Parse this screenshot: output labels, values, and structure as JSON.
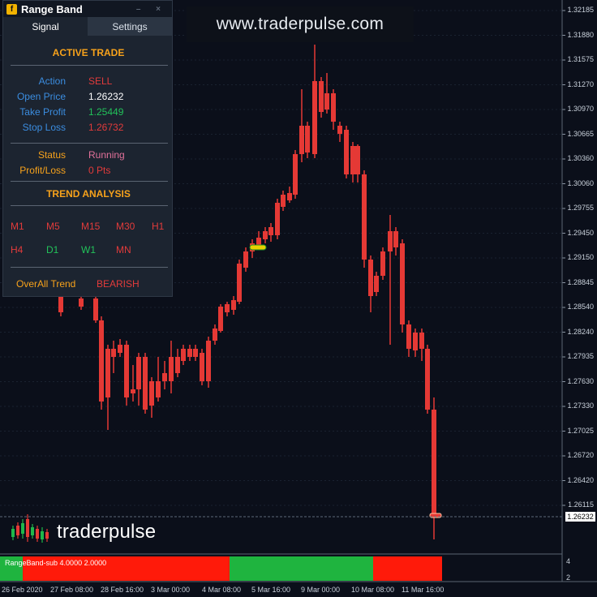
{
  "panel": {
    "logo_letter": "f",
    "title": "Range Band",
    "controls": "– ×",
    "tabs": [
      {
        "label": "Signal",
        "active": true
      },
      {
        "label": "Settings",
        "active": false
      }
    ],
    "active_trade_title": "ACTIVE TRADE",
    "action_label": "Action",
    "action_value": "SELL",
    "open_price_label": "Open Price",
    "open_price_value": "1.26232",
    "take_profit_label": "Take Profit",
    "take_profit_value": "1.25449",
    "stop_loss_label": "Stop Loss",
    "stop_loss_value": "1.26732",
    "status_label": "Status",
    "status_value": "Running",
    "profit_loss_label": "Profit/Loss",
    "profit_loss_value": "0 Pts",
    "trend_title": "TREND ANALYSIS",
    "timeframes_row1": [
      {
        "label": "M1",
        "color": "#e23b3b"
      },
      {
        "label": "M5",
        "color": "#e23b3b"
      },
      {
        "label": "M15",
        "color": "#e23b3b"
      },
      {
        "label": "M30",
        "color": "#e23b3b"
      },
      {
        "label": "H1",
        "color": "#e23b3b"
      }
    ],
    "timeframes_row2": [
      {
        "label": "H4",
        "color": "#e23b3b"
      },
      {
        "label": "D1",
        "color": "#22c25a"
      },
      {
        "label": "W1",
        "color": "#22c25a"
      },
      {
        "label": "MN",
        "color": "#e23b3b"
      }
    ],
    "overall_label": "OverAll Trend",
    "overall_value": "BEARISH"
  },
  "watermark_url": "www.traderpulse.com",
  "brand": {
    "trader": "trader",
    "pulse": "pulse"
  },
  "price_axis": [
    "1.32185",
    "1.31880",
    "1.31575",
    "1.31270",
    "1.30970",
    "1.30665",
    "1.30360",
    "1.30060",
    "1.29755",
    "1.29450",
    "1.29150",
    "1.28845",
    "1.28540",
    "1.28240",
    "1.27935",
    "1.27630",
    "1.27330",
    "1.27025",
    "1.26720",
    "1.26420",
    "1.26115"
  ],
  "current_price": "1.26232",
  "date_axis": [
    "26 Feb 2020",
    "27 Feb 08:00",
    "28 Feb 16:00",
    "3 Mar 00:00",
    "4 Mar 08:00",
    "5 Mar 16:00",
    "9 Mar 00:00",
    "10 Mar 08:00",
    "11 Mar 16:00"
  ],
  "subwindow": {
    "label": "RangeBand-sub 4.0000 2.0000",
    "axis": [
      "4",
      "2"
    ],
    "segments": [
      {
        "color": "green",
        "from": 0,
        "to": 28
      },
      {
        "color": "red",
        "from": 28,
        "to": 283
      },
      {
        "color": "green",
        "from": 283,
        "to": 460
      },
      {
        "color": "red",
        "from": 460,
        "to": 545
      }
    ]
  },
  "colors": {
    "bull": "#1fb84a",
    "bear": "#e53935",
    "bg": "#0b0f1a",
    "grid": "#1a2230"
  }
}
